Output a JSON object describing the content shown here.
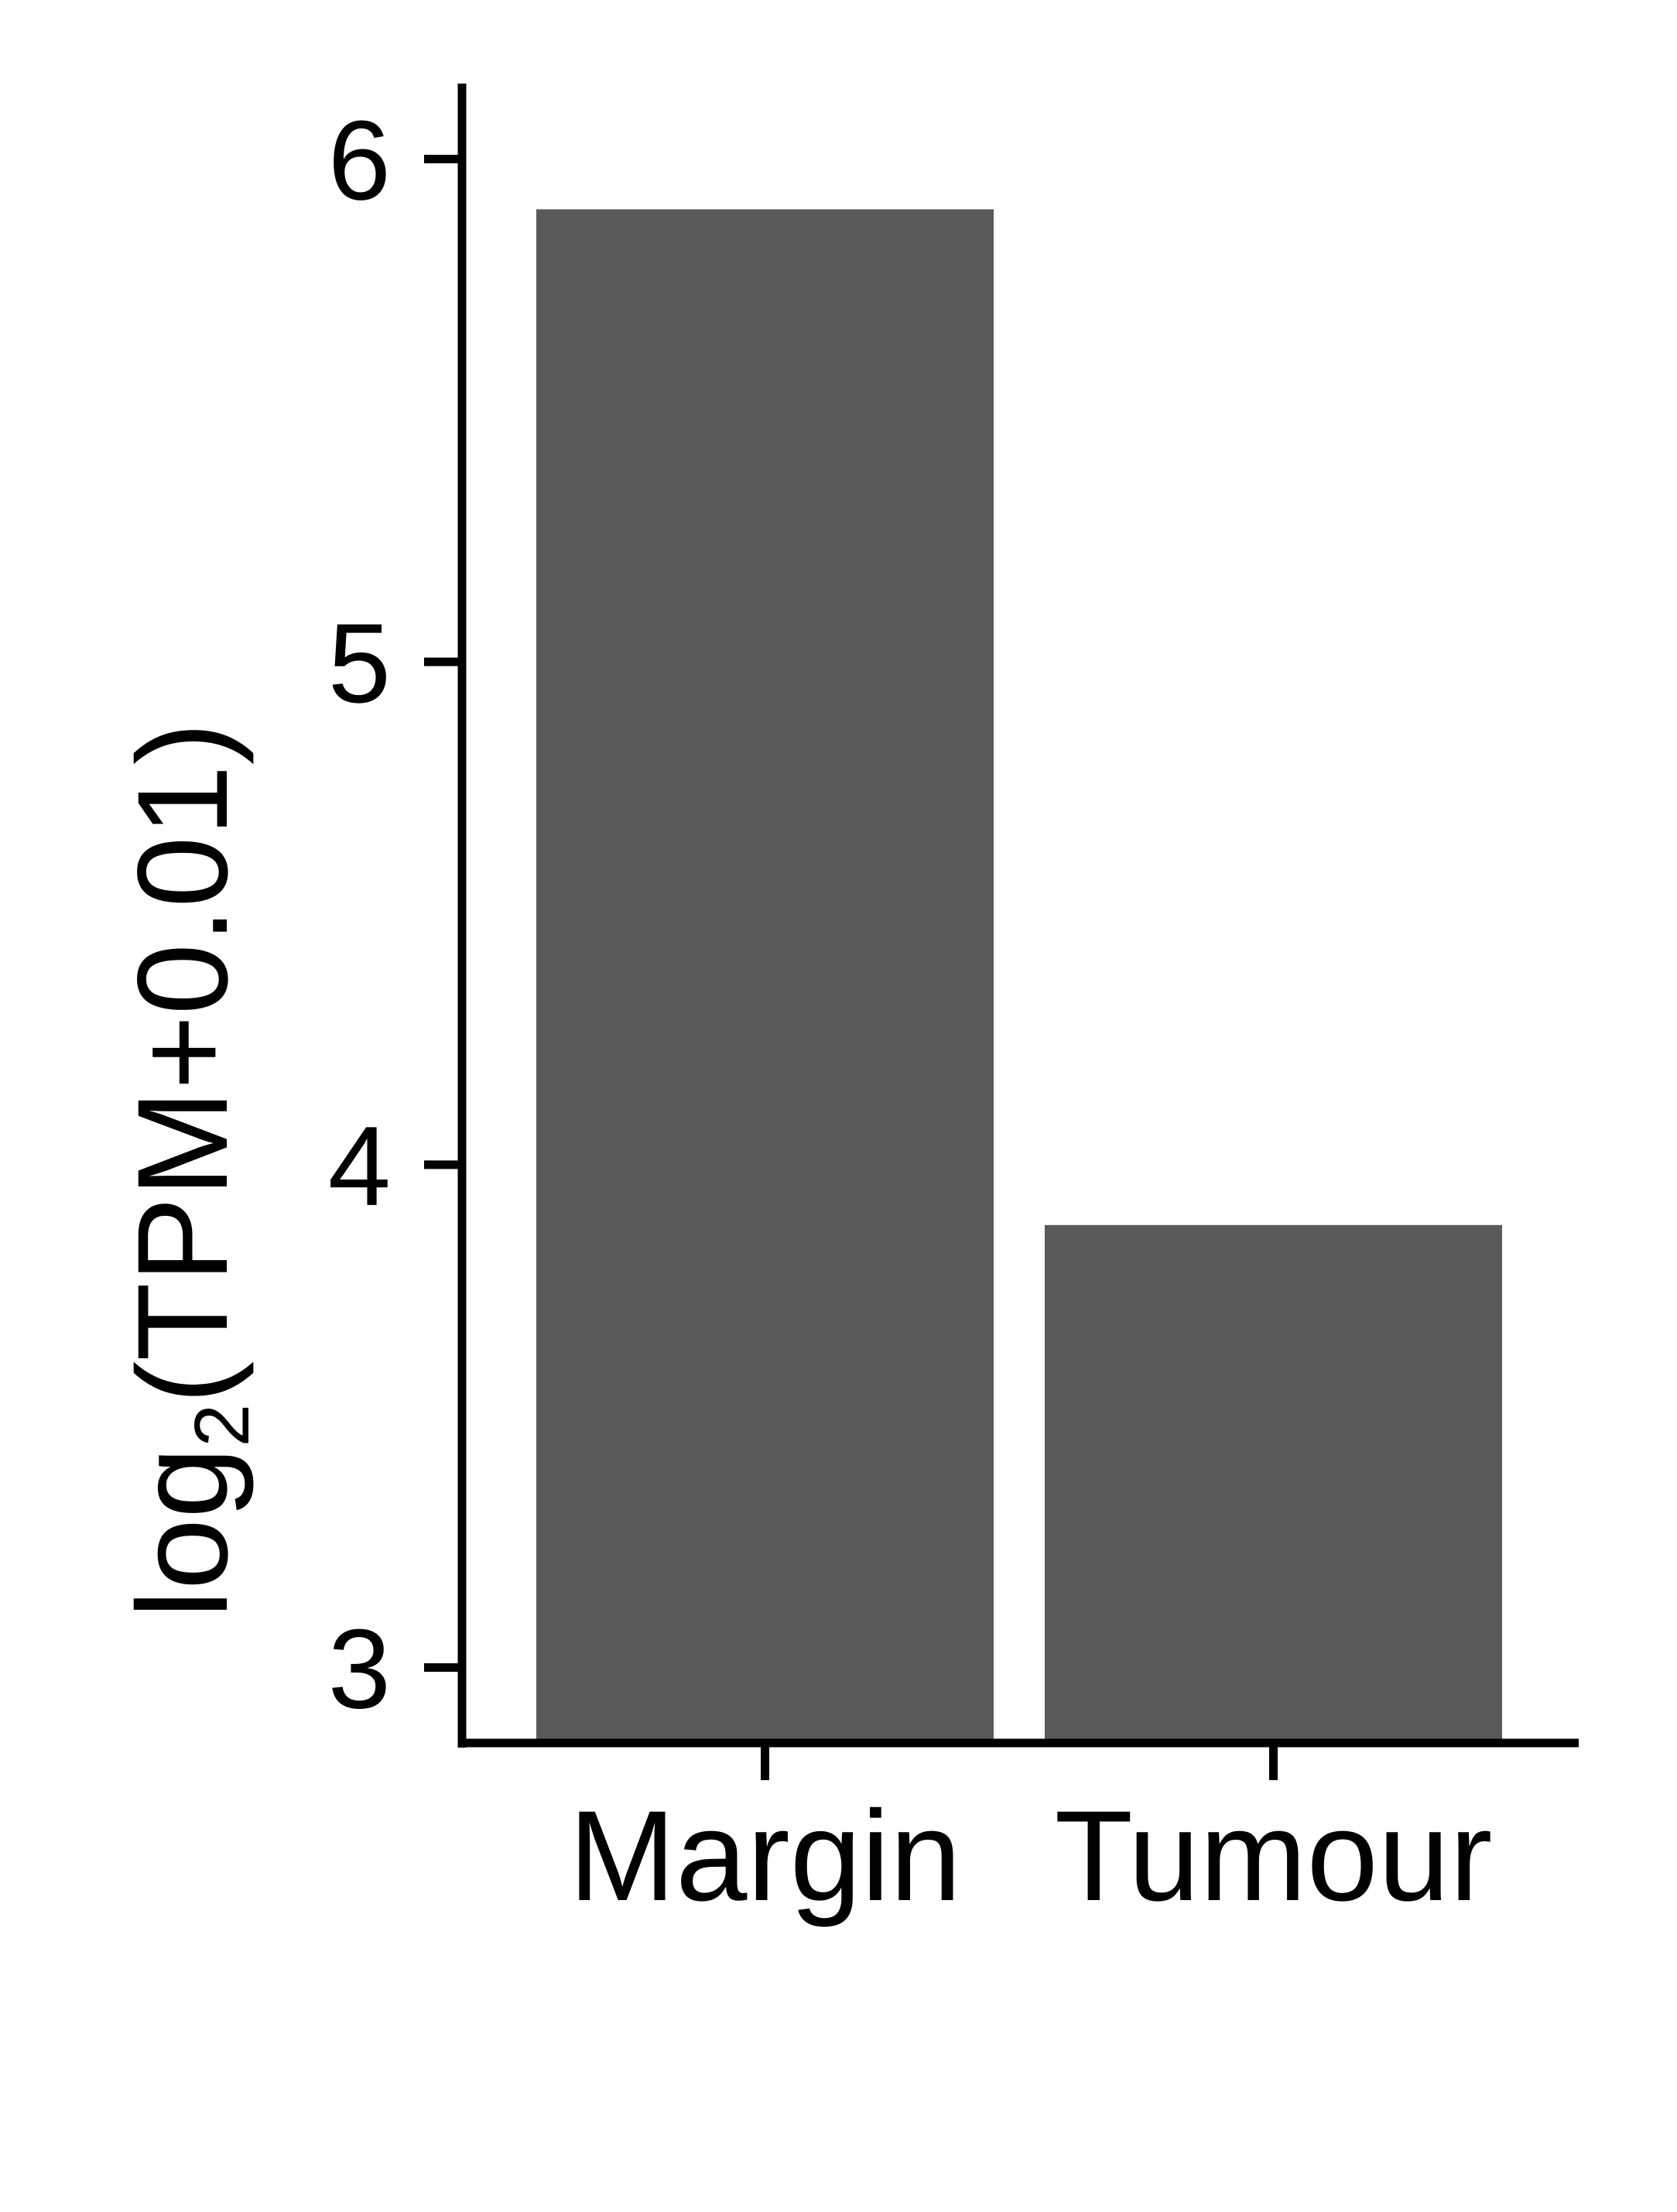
{
  "chart_data": {
    "type": "bar",
    "title": "",
    "categories": [
      "Margin",
      "Tumour"
    ],
    "series": [
      {
        "values": [
          5.9,
          3.88
        ],
        "color": "#595959"
      }
    ],
    "xlabel": "",
    "ylabel": "log2(TPM+0.01)",
    "ylabel_parts": {
      "base": "log",
      "subscript": "2",
      "rest": "(TPM+0.01)"
    },
    "yticks": [
      "3",
      "4",
      "5",
      "6"
    ],
    "ylim": [
      2.85,
      6.15
    ],
    "grid": false,
    "legend": "none",
    "axis_color": "#000000"
  }
}
